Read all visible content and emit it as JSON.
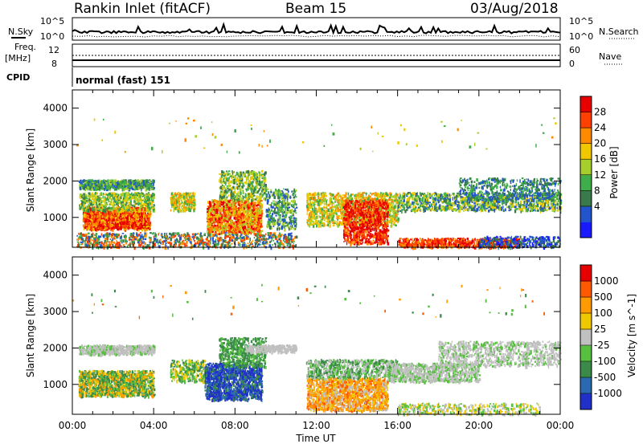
{
  "header": {
    "station": "Rankin Inlet (fitACF)",
    "beam": "Beam 15",
    "date": "03/Aug/2018"
  },
  "strip": {
    "nsky_label": "N.Sky",
    "nsearch_label": "N.Search",
    "freq_label_1": "Freq.",
    "freq_label_2": "[MHz]",
    "nave_label": "Nave",
    "cpid_label": "CPID",
    "cpid_value": "normal (fast) 151",
    "noise_ticks": [
      "10^5",
      "10^0"
    ],
    "freq_ticks": [
      "12",
      "8"
    ],
    "nave_ticks": [
      "60",
      "0"
    ]
  },
  "chart_data": [
    {
      "type": "heatmap",
      "name": "power",
      "xlabel": "Time UT",
      "ylabel": "Slant Range [km]",
      "ylim": [
        180,
        4500
      ],
      "y_ticks": [
        "4000",
        "3000",
        "2000",
        "1000"
      ],
      "x_ticks": [
        "00:00",
        "04:00",
        "08:00",
        "12:00",
        "16:00",
        "20:00",
        "00:00"
      ],
      "colorbar": {
        "label": "Power [dB]",
        "ticks": [
          "28",
          "24",
          "20",
          "16",
          "12",
          "8",
          "4"
        ],
        "colors": [
          "#1a1aff",
          "#2255cc",
          "#3a7a4a",
          "#3fae4a",
          "#a6cf2e",
          "#f0c800",
          "#ff8a00",
          "#ff4000",
          "#e60000"
        ]
      }
    },
    {
      "type": "heatmap",
      "name": "velocity",
      "xlabel": "Time UT",
      "ylabel": "Slant Range [km]",
      "ylim": [
        180,
        4500
      ],
      "y_ticks": [
        "4000",
        "3000",
        "2000",
        "1000"
      ],
      "x_ticks": [
        "00:00",
        "04:00",
        "08:00",
        "12:00",
        "16:00",
        "20:00",
        "00:00"
      ],
      "colorbar": {
        "label": "Velocity [m s^-1]",
        "ticks": [
          "1000",
          "500",
          "100",
          "25",
          "-25",
          "-100",
          "-500",
          "-1000"
        ],
        "colors": [
          "#2030c8",
          "#2a6ab0",
          "#3b8a4a",
          "#58c040",
          "#c0c0c0",
          "#f0c800",
          "#ff9a00",
          "#ff5a00",
          "#e60000"
        ]
      }
    }
  ],
  "colors": {
    "ground_scatter": "#bebebe",
    "axis": "#000000"
  }
}
